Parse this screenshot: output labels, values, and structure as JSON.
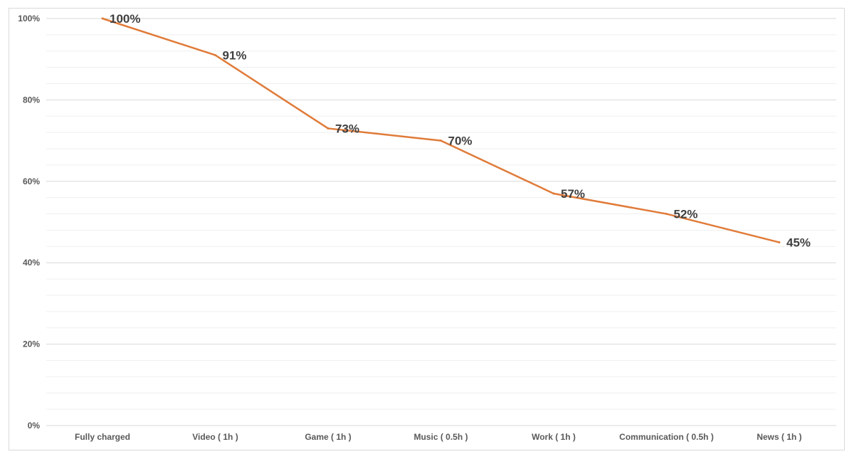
{
  "chart_data": {
    "type": "line",
    "title": "",
    "xlabel": "",
    "ylabel": "",
    "categories": [
      "Fully charged",
      "Video ( 1h )",
      "Game ( 1h )",
      "Music ( 0.5h )",
      "Work ( 1h )",
      "Communication ( 0.5h )",
      "News ( 1h )"
    ],
    "series": [
      {
        "values": [
          100,
          91,
          73,
          70,
          57,
          52,
          45
        ],
        "data_labels": [
          "100%",
          "91%",
          "73%",
          "70%",
          "57%",
          "52%",
          "45%"
        ],
        "color": "#E07B39"
      }
    ],
    "ylim": [
      0,
      100
    ],
    "yticks": [
      0,
      20,
      40,
      60,
      80,
      100
    ],
    "ytick_labels": [
      "0%",
      "20%",
      "40%",
      "60%",
      "80%",
      "100%"
    ],
    "grid": true,
    "legend": "none"
  }
}
